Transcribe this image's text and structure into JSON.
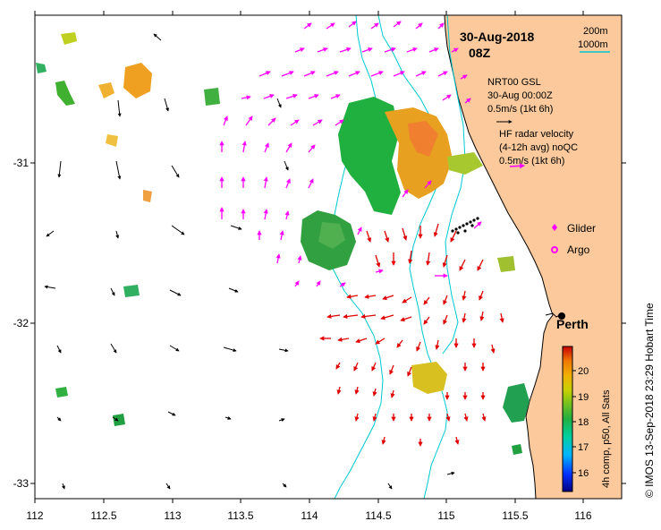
{
  "title": {
    "date": "30-Aug-2018",
    "time": "08Z"
  },
  "scale_bar": {
    "label_200m": "200m",
    "label_1000m": "1000m"
  },
  "legend": {
    "gsl": {
      "line1": "NRT00 GSL",
      "line2": "30-Aug 00:00Z",
      "line3": "0.5m/s (1kt 6h)"
    },
    "radar": {
      "line1": "HF radar velocity",
      "line2": "(4-12h avg) noQC",
      "line3": "0.5m/s (1kt 6h)"
    },
    "glider": "Glider",
    "argo": "Argo"
  },
  "place": {
    "name": "Perth"
  },
  "colorbar": {
    "label": "4h comp, p50, All Sats",
    "ticks": [
      "16",
      "17",
      "18",
      "19",
      "20"
    ],
    "range": [
      15.5,
      20.5
    ]
  },
  "axes": {
    "x_ticks": [
      "112",
      "112.5",
      "113",
      "113.5",
      "114",
      "114.5",
      "115",
      "115.5",
      "116"
    ],
    "y_ticks": [
      "-31",
      "-32",
      "-33"
    ]
  },
  "credit": "© IMOS 13-Sep-2018 23:29 Hobart Time",
  "colors": {
    "land": "#fbc99b",
    "coast": "#000000",
    "isobath": "#00c8d2",
    "radar_vector_north": "#ff00ff",
    "radar_vector_south": "#e00000",
    "model_vector": "#000000",
    "glider": "#ff00ff",
    "argo": "#ff00ff"
  }
}
